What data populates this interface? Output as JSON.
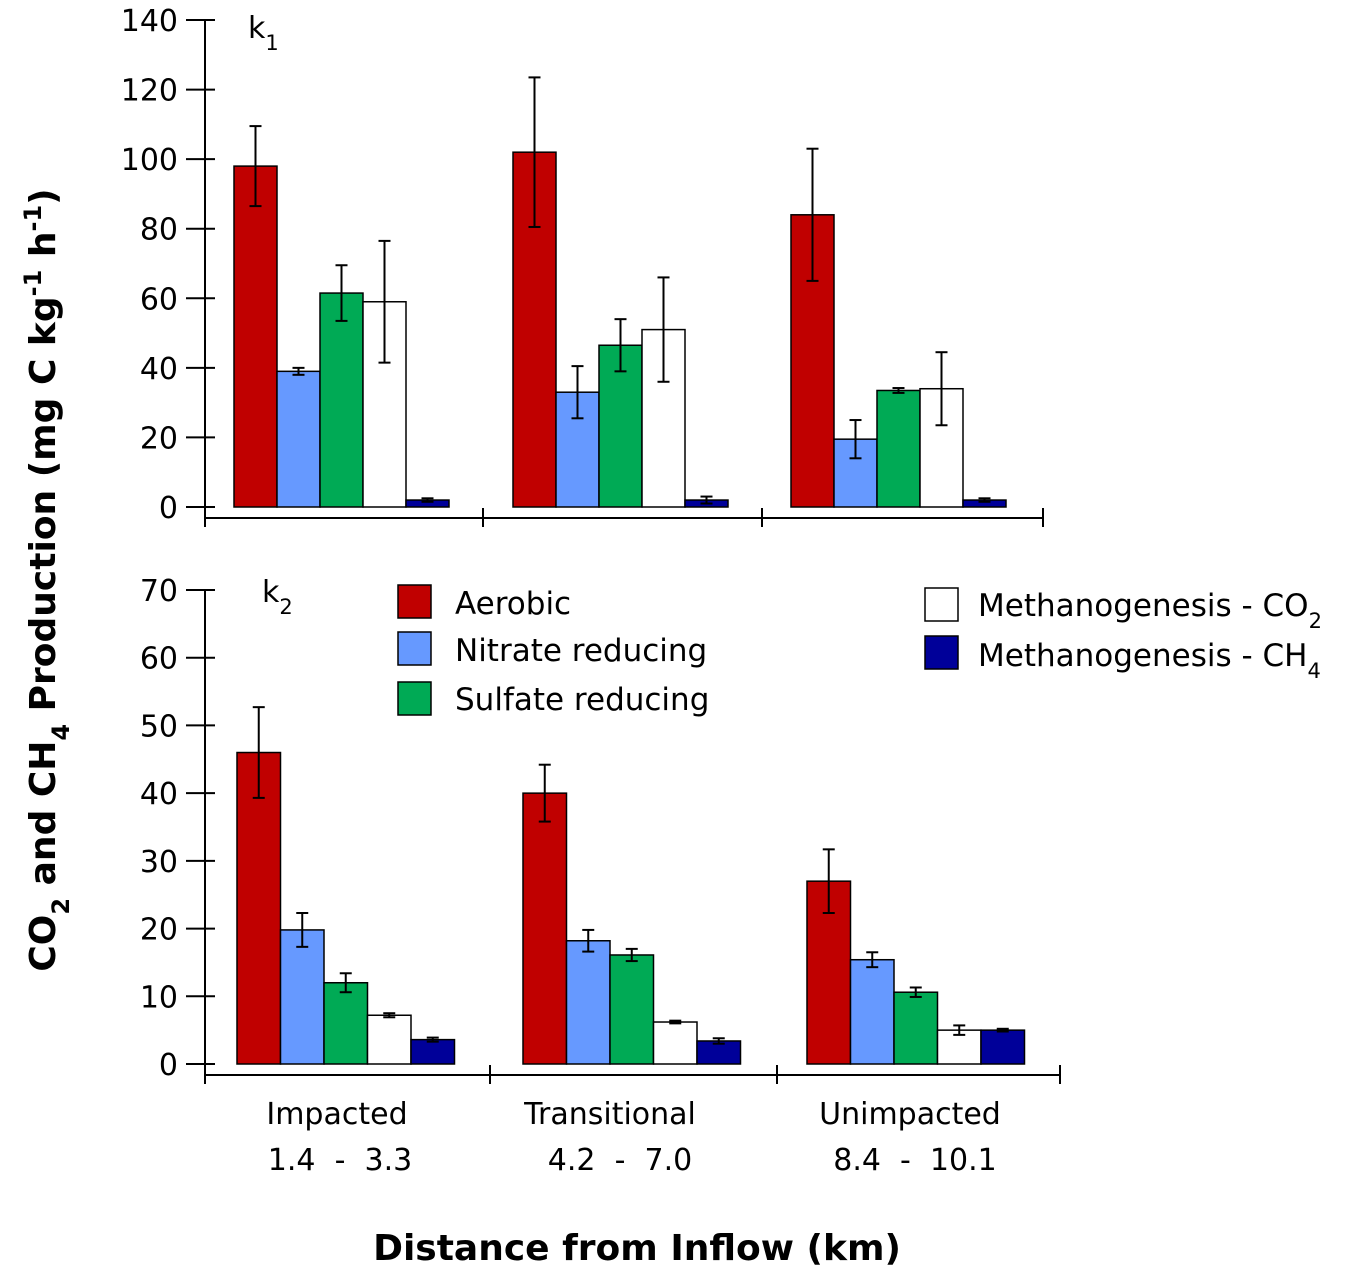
{
  "chart_data": [
    {
      "type": "bar",
      "panel_label": {
        "main": "k",
        "sub": "1"
      },
      "ylim": [
        0,
        140
      ],
      "yticks": [
        "0",
        "20",
        "40",
        "60",
        "80",
        "100",
        "120",
        "140"
      ],
      "categories": [
        "Impacted",
        "Transitional",
        "Unimpacted"
      ],
      "series": [
        {
          "name": "Aerobic",
          "values": [
            98,
            102,
            84
          ],
          "errors": [
            11.5,
            21.5,
            19
          ]
        },
        {
          "name": "Nitrate reducing",
          "values": [
            39,
            33,
            19.5
          ],
          "errors": [
            1,
            7.5,
            5.5
          ]
        },
        {
          "name": "Sulfate reducing",
          "values": [
            61.5,
            46.5,
            33.5
          ],
          "errors": [
            8,
            7.5,
            0.7
          ]
        },
        {
          "name": "Methanogenesis - CO2",
          "values": [
            59,
            51,
            34
          ],
          "errors": [
            17.5,
            15,
            10.5
          ]
        },
        {
          "name": "Methanogenesis - CH4",
          "values": [
            2,
            2,
            2
          ],
          "errors": [
            0.5,
            1,
            0.5
          ]
        }
      ]
    },
    {
      "type": "bar",
      "panel_label": {
        "main": "k",
        "sub": "2"
      },
      "ylim": [
        0,
        70
      ],
      "yticks": [
        "0",
        "10",
        "20",
        "30",
        "40",
        "50",
        "60",
        "70"
      ],
      "categories": [
        "Impacted",
        "Transitional",
        "Unimpacted"
      ],
      "series": [
        {
          "name": "Aerobic",
          "values": [
            46,
            40,
            27
          ],
          "errors": [
            6.7,
            4.2,
            4.7
          ]
        },
        {
          "name": "Nitrate reducing",
          "values": [
            19.8,
            18.2,
            15.4
          ],
          "errors": [
            2.5,
            1.6,
            1.1
          ]
        },
        {
          "name": "Sulfate reducing",
          "values": [
            12,
            16.1,
            10.6
          ],
          "errors": [
            1.4,
            0.9,
            0.7
          ]
        },
        {
          "name": "Methanogenesis - CO2",
          "values": [
            7.2,
            6.2,
            5
          ],
          "errors": [
            0.3,
            0.2,
            0.7
          ]
        },
        {
          "name": "Methanogenesis - CH4",
          "values": [
            3.6,
            3.4,
            5
          ],
          "errors": [
            0.3,
            0.4,
            0.2
          ]
        }
      ]
    }
  ],
  "colors": {
    "Aerobic": "#c00000",
    "Nitrate reducing": "#6699ff",
    "Sulfate reducing": "#00aa55",
    "Methanogenesis - CO2": "#ffffff",
    "Methanogenesis - CH4": "#000099"
  },
  "legend": {
    "aerobic": "Aerobic",
    "nitrate": "Nitrate reducing",
    "sulfate": "Sulfate reducing",
    "meth_co2_main": "Methanogenesis - CO",
    "meth_co2_sub": "2",
    "meth_ch4_main": "Methanogenesis - CH",
    "meth_ch4_sub": "4"
  },
  "x_categories": [
    {
      "name": "Impacted",
      "range": "1.4  -  3.3"
    },
    {
      "name": "Transitional",
      "range": "4.2  -  7.0"
    },
    {
      "name": "Unimpacted",
      "range": "8.4  -  10.1"
    }
  ],
  "xlabel": "Distance from Inflow (km)",
  "ylabel": {
    "p1": "CO",
    "p1_sub": "2",
    "p2": " and CH",
    "p2_sub": "4",
    "p3": " Production (mg C kg",
    "p3_sup": "-1",
    "p4": " h",
    "p4_sup": "-1",
    "p5": ")"
  }
}
